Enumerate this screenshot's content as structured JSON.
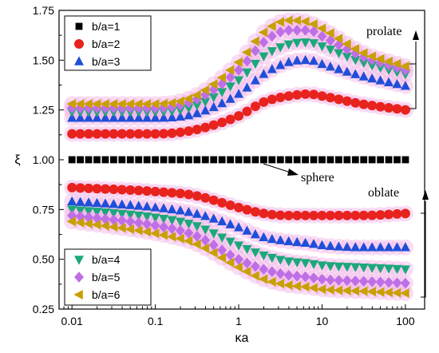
{
  "chart_data": {
    "type": "scatter",
    "title": "",
    "xlabel": "κa",
    "ylabel": "ξ",
    "xscale": "log",
    "xlim": [
      0.007,
      170
    ],
    "ylim": [
      0.25,
      1.75
    ],
    "x_ticks": [
      0.01,
      0.1,
      1,
      10,
      100
    ],
    "x_tick_labels": [
      "0.01",
      "0.1",
      "1",
      "10",
      "100"
    ],
    "y_ticks": [
      0.25,
      0.5,
      0.75,
      1.0,
      1.25,
      1.5,
      1.75
    ],
    "y_tick_labels": [
      "0.25",
      "0.50",
      "0.75",
      "1.00",
      "1.25",
      "1.50",
      "1.75"
    ],
    "grid": false,
    "x": [
      0.01,
      0.1,
      0.3,
      1,
      2,
      4,
      7,
      10,
      30,
      100
    ],
    "series": [
      {
        "name": "b/a=1",
        "marker": "square",
        "color": "#000000",
        "halo": false,
        "values": [
          1.0,
          1.0,
          1.0,
          1.0,
          1.0,
          1.0,
          1.0,
          1.0,
          1.0,
          1.0
        ]
      },
      {
        "name": "b/a=2",
        "marker": "circle",
        "color": "#e8231e",
        "halo": true,
        "values": [
          1.13,
          1.13,
          1.15,
          1.22,
          1.29,
          1.32,
          1.33,
          1.32,
          1.28,
          1.25
        ]
      },
      {
        "name": "b/a=3",
        "marker": "triangle-up",
        "color": "#1f4fd8",
        "halo": true,
        "values": [
          1.21,
          1.21,
          1.23,
          1.33,
          1.43,
          1.49,
          1.5,
          1.48,
          1.42,
          1.37
        ]
      },
      {
        "name": "b/a=4",
        "marker": "triangle-down",
        "color": "#1aa87a",
        "halo": true,
        "values": [
          1.24,
          1.24,
          1.27,
          1.4,
          1.52,
          1.58,
          1.59,
          1.57,
          1.49,
          1.43
        ]
      },
      {
        "name": "b/a=5",
        "marker": "diamond",
        "color": "#bf6fe6",
        "halo": true,
        "values": [
          1.26,
          1.26,
          1.3,
          1.45,
          1.59,
          1.65,
          1.65,
          1.62,
          1.52,
          1.45
        ]
      },
      {
        "name": "b/a=6",
        "marker": "triangle-left",
        "color": "#c8a000",
        "halo": true,
        "values": [
          1.28,
          1.28,
          1.32,
          1.49,
          1.64,
          1.7,
          1.69,
          1.66,
          1.54,
          1.47
        ]
      },
      {
        "name": "b/a=2",
        "marker": "circle",
        "color": "#e8231e",
        "halo": true,
        "values": [
          0.86,
          0.84,
          0.82,
          0.76,
          0.73,
          0.72,
          0.72,
          0.72,
          0.72,
          0.73
        ]
      },
      {
        "name": "b/a=3",
        "marker": "triangle-up",
        "color": "#1f4fd8",
        "halo": true,
        "values": [
          0.79,
          0.76,
          0.73,
          0.66,
          0.61,
          0.59,
          0.58,
          0.57,
          0.56,
          0.56
        ]
      },
      {
        "name": "b/a=4",
        "marker": "triangle-down",
        "color": "#1aa87a",
        "halo": true,
        "values": [
          0.75,
          0.71,
          0.67,
          0.57,
          0.52,
          0.49,
          0.48,
          0.47,
          0.46,
          0.45
        ]
      },
      {
        "name": "b/a=5",
        "marker": "diamond",
        "color": "#bf6fe6",
        "halo": true,
        "values": [
          0.72,
          0.67,
          0.62,
          0.5,
          0.45,
          0.42,
          0.41,
          0.4,
          0.39,
          0.38
        ]
      },
      {
        "name": "b/a=6",
        "marker": "triangle-left",
        "color": "#c8a000",
        "halo": true,
        "values": [
          0.69,
          0.63,
          0.58,
          0.46,
          0.4,
          0.37,
          0.36,
          0.35,
          0.34,
          0.33
        ]
      }
    ],
    "legends": [
      {
        "placement": "top-left",
        "entries": [
          {
            "label": "b/a=1",
            "marker": "square",
            "color": "#000000"
          },
          {
            "label": "b/a=2",
            "marker": "circle",
            "color": "#e8231e"
          },
          {
            "label": "b/a=3",
            "marker": "triangle-up",
            "color": "#1f4fd8"
          }
        ]
      },
      {
        "placement": "bottom-left",
        "entries": [
          {
            "label": "b/a=4",
            "marker": "triangle-down",
            "color": "#1aa87a"
          },
          {
            "label": "b/a=5",
            "marker": "diamond",
            "color": "#bf6fe6"
          },
          {
            "label": "b/a=6",
            "marker": "triangle-left",
            "color": "#c8a000"
          }
        ]
      }
    ],
    "annotations": [
      {
        "text": "prolate",
        "placement": "top-right"
      },
      {
        "text": "sphere",
        "placement": "center-right"
      },
      {
        "text": "oblate",
        "placement": "middle-right"
      }
    ],
    "halo_color": "#f1b3e6"
  }
}
